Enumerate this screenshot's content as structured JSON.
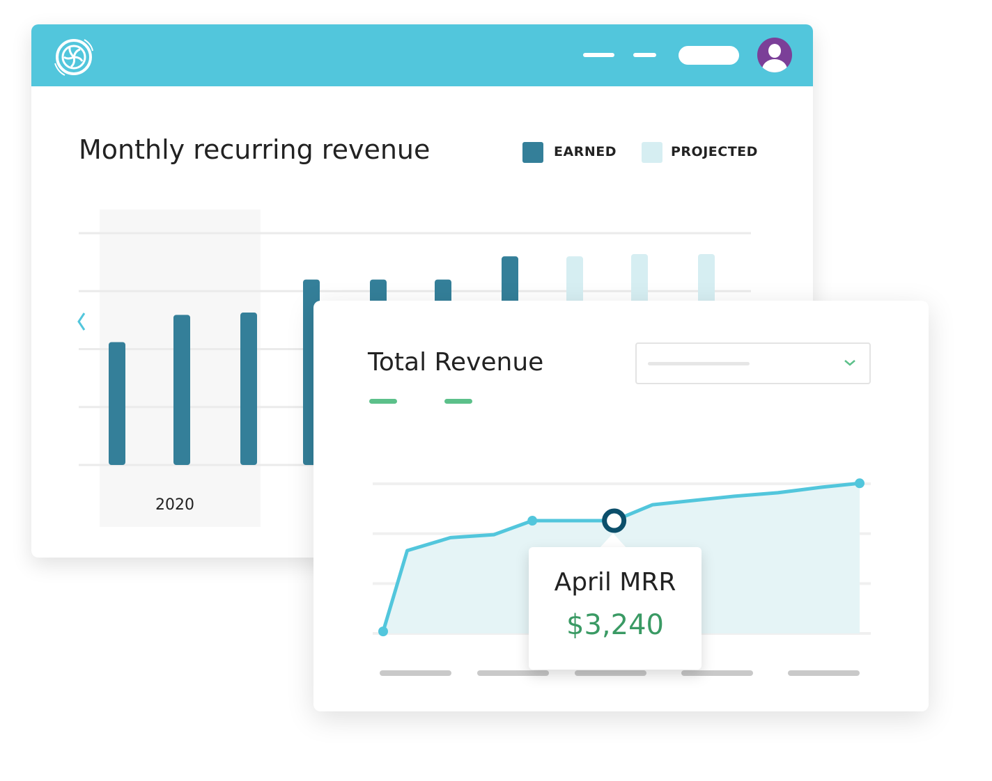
{
  "header": {
    "logo": "fan-logo-icon",
    "avatar": "user-avatar-icon",
    "accent": "#52c6dc"
  },
  "mrr_panel": {
    "title": "Monthly recurring revenue",
    "legend": [
      {
        "label": "EARNED",
        "color": "#347f99"
      },
      {
        "label": "PROJECTED",
        "color": "#d6eef2"
      }
    ],
    "year_label": "2020",
    "prev_icon": "chevron-left-icon"
  },
  "revenue_panel": {
    "title": "Total Revenue",
    "dropdown_icon": "chevron-down-icon",
    "tooltip": {
      "label": "April MRR",
      "value": "$3,240"
    }
  },
  "chart_data": [
    {
      "type": "bar",
      "title": "Monthly recurring revenue",
      "ylim": [
        0,
        4
      ],
      "grid": true,
      "series": [
        {
          "name": "EARNED",
          "values": [
            2.12,
            2.59,
            2.63,
            3.2,
            3.2,
            3.2,
            3.6
          ]
        },
        {
          "name": "PROJECTED",
          "values": [
            3.6,
            3.64,
            3.64
          ]
        }
      ],
      "categories_label": "2020"
    },
    {
      "type": "area",
      "title": "Total Revenue",
      "ylim": [
        0,
        3
      ],
      "grid": true,
      "x": [
        0,
        0.5,
        1.4,
        2.3,
        3.1,
        4.8,
        5.6,
        7.3,
        8.2,
        9.1,
        9.9
      ],
      "y": [
        0.04,
        1.66,
        1.92,
        1.98,
        2.26,
        2.26,
        2.58,
        2.75,
        2.82,
        2.93,
        3.01
      ],
      "markers": [
        0,
        4,
        10
      ],
      "highlight": 5
    }
  ]
}
